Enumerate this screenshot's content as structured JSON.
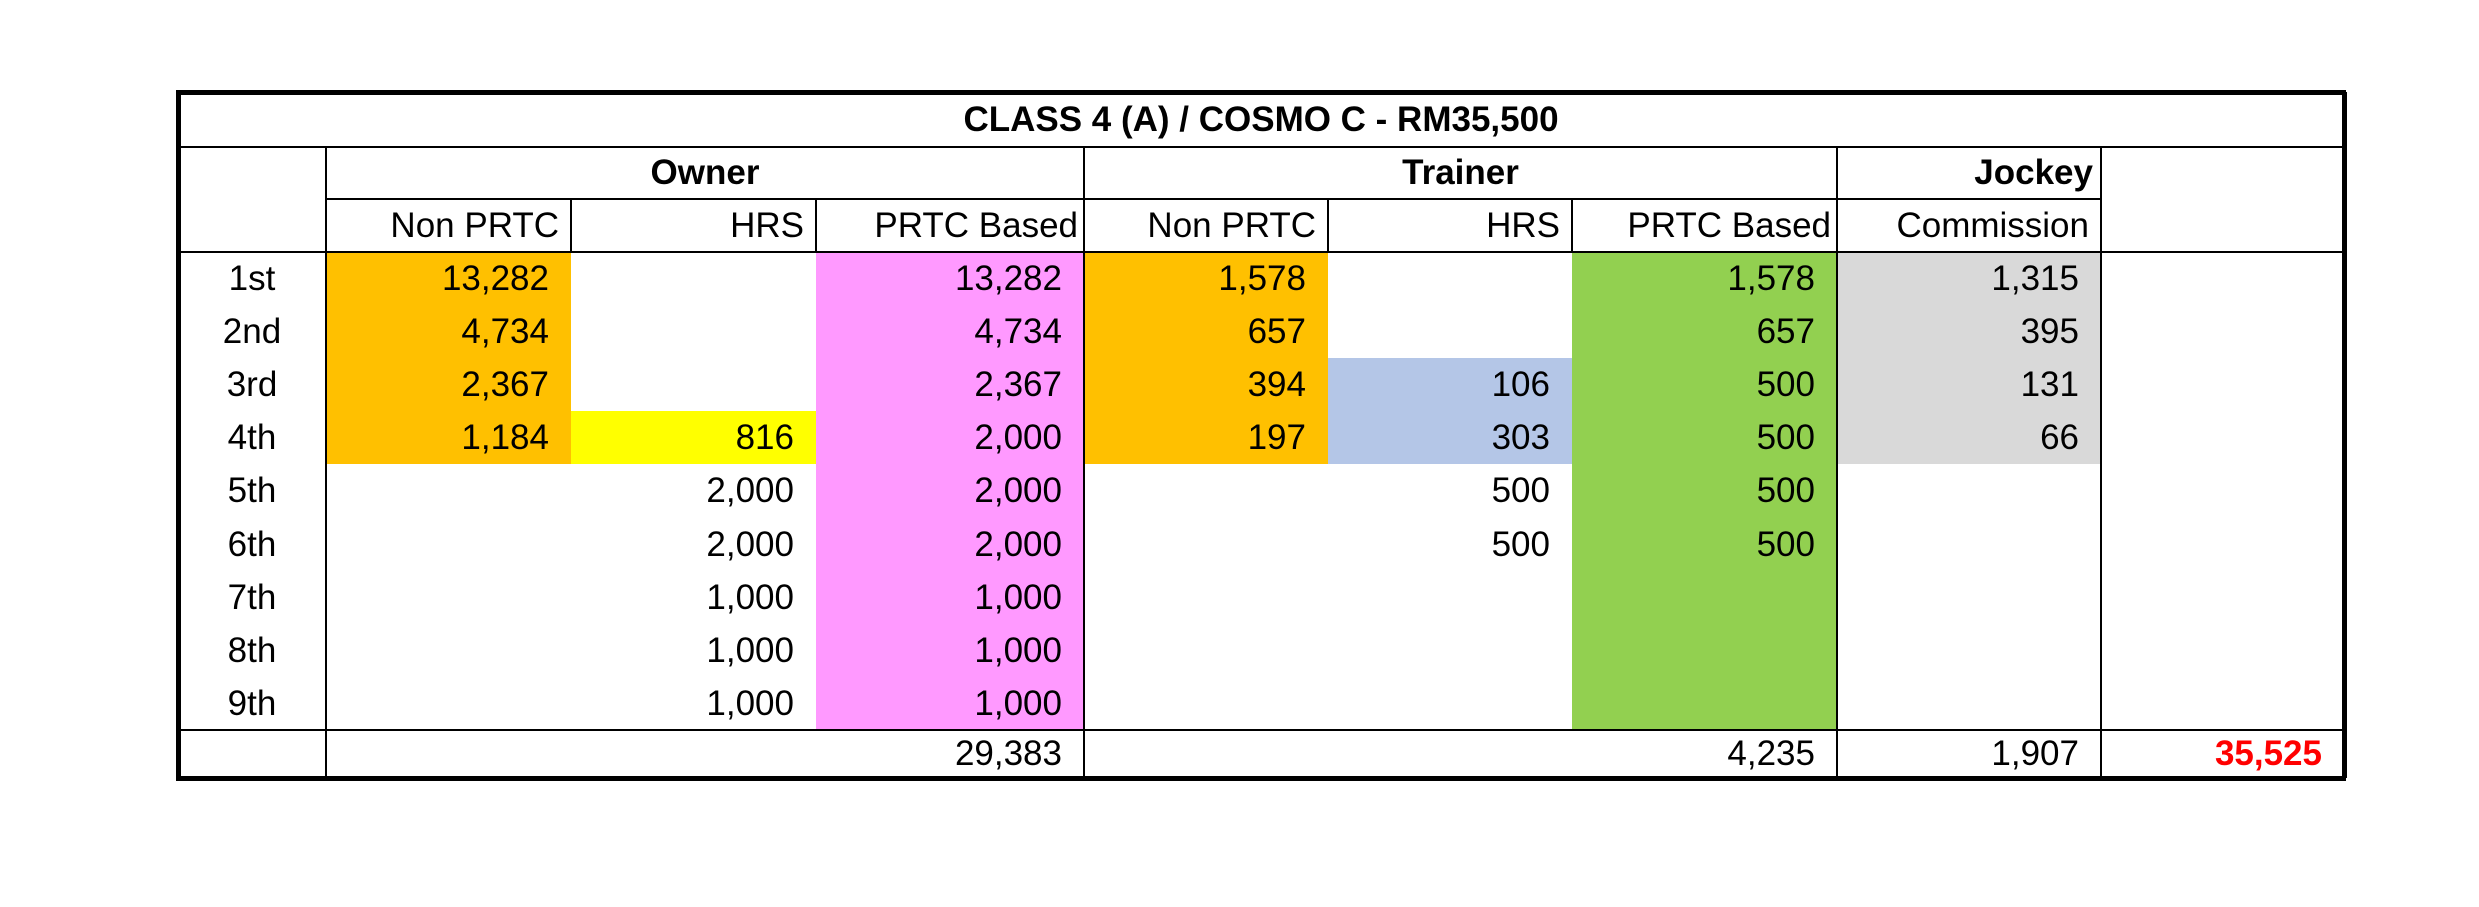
{
  "title": "CLASS 4 (A) / COSMO C - RM35,500",
  "groups": {
    "owner": "Owner",
    "trainer": "Trainer",
    "jockey": "Jockey"
  },
  "columns": {
    "owner_non_prtc": "Non PRTC",
    "owner_hrs": "HRS",
    "owner_prtc": "PRTC Based",
    "trainer_non_prtc": "Non PRTC",
    "trainer_hrs": "HRS",
    "trainer_prtc": "PRTC Based",
    "jockey_commission": "Commission"
  },
  "rows": [
    {
      "place": "1st",
      "owner_non_prtc": "13,282",
      "owner_hrs": "",
      "owner_prtc": "13,282",
      "trainer_non_prtc": "1,578",
      "trainer_hrs": "",
      "trainer_prtc": "1,578",
      "jockey_commission": "1,315"
    },
    {
      "place": "2nd",
      "owner_non_prtc": "4,734",
      "owner_hrs": "",
      "owner_prtc": "4,734",
      "trainer_non_prtc": "657",
      "trainer_hrs": "",
      "trainer_prtc": "657",
      "jockey_commission": "395"
    },
    {
      "place": "3rd",
      "owner_non_prtc": "2,367",
      "owner_hrs": "",
      "owner_prtc": "2,367",
      "trainer_non_prtc": "394",
      "trainer_hrs": "106",
      "trainer_prtc": "500",
      "jockey_commission": "131"
    },
    {
      "place": "4th",
      "owner_non_prtc": "1,184",
      "owner_hrs": "816",
      "owner_prtc": "2,000",
      "trainer_non_prtc": "197",
      "trainer_hrs": "303",
      "trainer_prtc": "500",
      "jockey_commission": "66"
    },
    {
      "place": "5th",
      "owner_non_prtc": "",
      "owner_hrs": "2,000",
      "owner_prtc": "2,000",
      "trainer_non_prtc": "",
      "trainer_hrs": "500",
      "trainer_prtc": "500",
      "jockey_commission": ""
    },
    {
      "place": "6th",
      "owner_non_prtc": "",
      "owner_hrs": "2,000",
      "owner_prtc": "2,000",
      "trainer_non_prtc": "",
      "trainer_hrs": "500",
      "trainer_prtc": "500",
      "jockey_commission": ""
    },
    {
      "place": "7th",
      "owner_non_prtc": "",
      "owner_hrs": "1,000",
      "owner_prtc": "1,000",
      "trainer_non_prtc": "",
      "trainer_hrs": "",
      "trainer_prtc": "",
      "jockey_commission": ""
    },
    {
      "place": "8th",
      "owner_non_prtc": "",
      "owner_hrs": "1,000",
      "owner_prtc": "1,000",
      "trainer_non_prtc": "",
      "trainer_hrs": "",
      "trainer_prtc": "",
      "jockey_commission": ""
    },
    {
      "place": "9th",
      "owner_non_prtc": "",
      "owner_hrs": "1,000",
      "owner_prtc": "1,000",
      "trainer_non_prtc": "",
      "trainer_hrs": "",
      "trainer_prtc": "",
      "jockey_commission": ""
    }
  ],
  "totals": {
    "owner": "29,383",
    "trainer": "4,235",
    "jockey": "1,907",
    "grand": "35,525"
  },
  "colors": {
    "non_prtc": "#ffc000",
    "owner_hrs": "#ffff00",
    "owner_prtc": "#ff99ff",
    "trainer_hrs": "#b4c6e7",
    "trainer_prtc": "#92d050",
    "jockey": "#d9d9d9",
    "grand_total": "#ff0000"
  }
}
